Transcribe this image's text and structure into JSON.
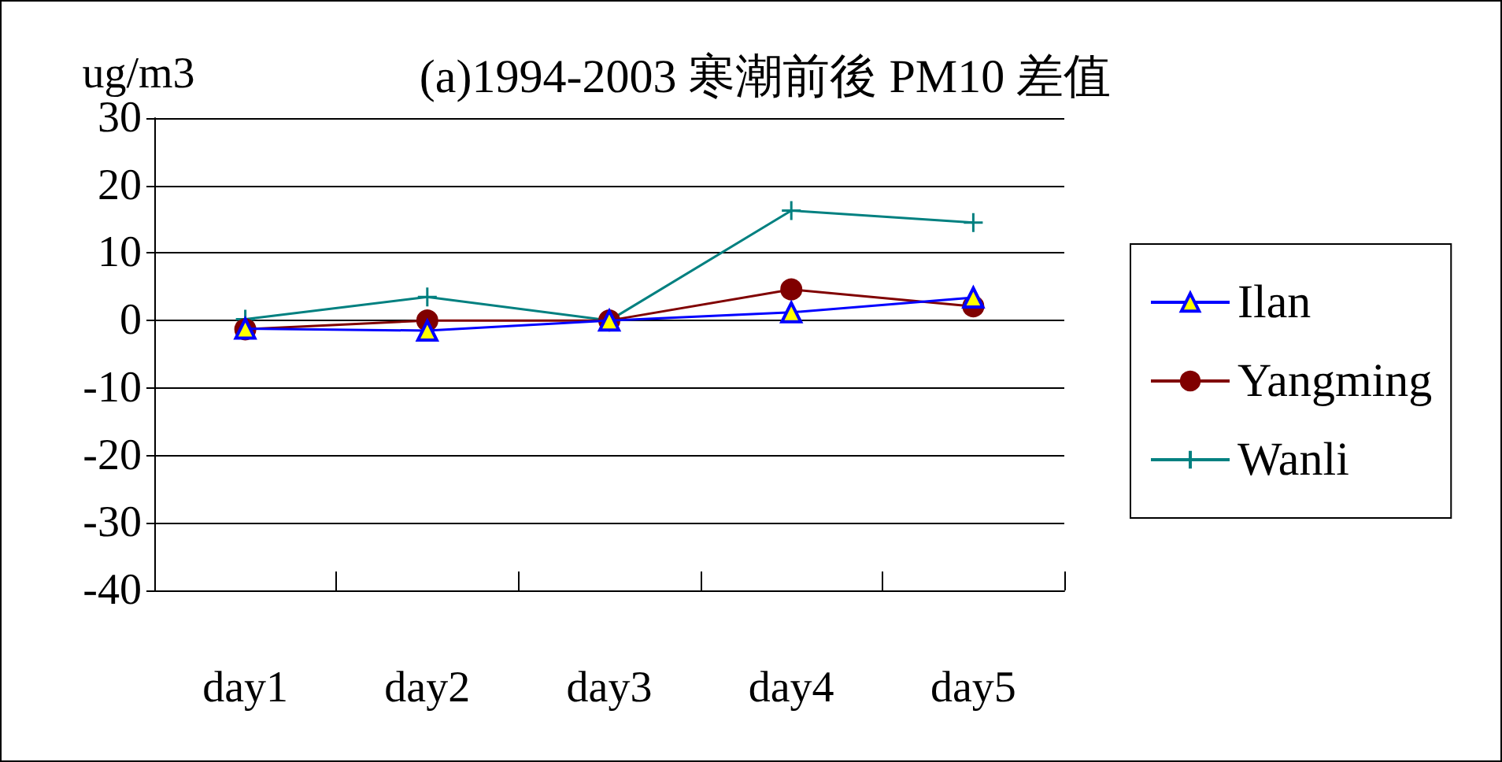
{
  "chart_data": {
    "type": "line",
    "title": "(a)1994-2003 寒潮前後 PM10 差值",
    "ylabel": "ug/m3",
    "categories": [
      "day1",
      "day2",
      "day3",
      "day4",
      "day5"
    ],
    "series": [
      {
        "name": "Ilan",
        "color": "#0000ff",
        "marker": "triangle",
        "values": [
          -1.2,
          -1.5,
          0,
          1.2,
          3.4
        ]
      },
      {
        "name": "Yangming",
        "color": "#800000",
        "marker": "circle",
        "values": [
          -1.3,
          0,
          0,
          4.6,
          2.1
        ]
      },
      {
        "name": "Wanli",
        "color": "#008080",
        "marker": "cross",
        "values": [
          0.2,
          3.5,
          0,
          16.3,
          14.5
        ]
      }
    ],
    "ylim": [
      -40,
      30
    ],
    "yticks": [
      -40,
      -30,
      -20,
      -10,
      0,
      10,
      20,
      30
    ],
    "grid": "y",
    "legend": "right",
    "line_style": "solid"
  }
}
